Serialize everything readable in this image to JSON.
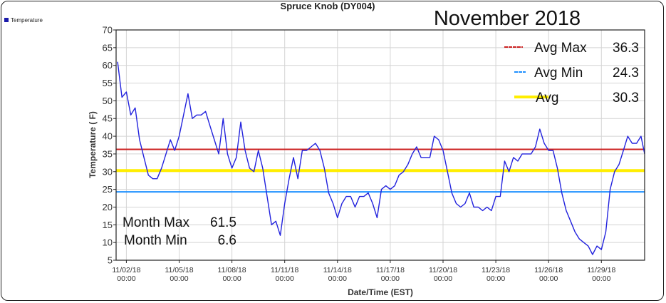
{
  "chart_data": {
    "type": "line",
    "title": "Spruce Knob (DY004)",
    "subtitle": "November 2018",
    "xlabel": "Date/Time (EST)",
    "ylabel": "Temperature ( F)",
    "ylim": [
      5,
      70
    ],
    "yticks": [
      5,
      10,
      15,
      20,
      25,
      30,
      35,
      40,
      45,
      50,
      55,
      60,
      65,
      70
    ],
    "xlim": [
      "11/01/18 10:00",
      "12/01/18 11:00"
    ],
    "xticks": [
      {
        "date": "11/02/18",
        "time": "00:00"
      },
      {
        "date": "11/05/18",
        "time": "00:00"
      },
      {
        "date": "11/08/18",
        "time": "00:00"
      },
      {
        "date": "11/11/18",
        "time": "00:00"
      },
      {
        "date": "11/14/18",
        "time": "00:00"
      },
      {
        "date": "11/17/18",
        "time": "00:00"
      },
      {
        "date": "11/20/18",
        "time": "00:00"
      },
      {
        "date": "11/23/18",
        "time": "00:00"
      },
      {
        "date": "11/26/18",
        "time": "00:00"
      },
      {
        "date": "11/29/18",
        "time": "00:00"
      }
    ],
    "grid": true,
    "legend": {
      "position": "top-left",
      "entries": [
        "Temperature"
      ]
    },
    "series": [
      {
        "name": "Temperature",
        "color": "#2222dd",
        "start": "11/01/18 12:00",
        "step_hours": 6,
        "values": [
          61,
          51,
          52.5,
          46,
          48,
          39,
          34,
          29,
          28,
          28,
          31,
          35,
          39,
          36,
          40,
          46,
          52,
          45,
          46,
          46,
          47,
          43,
          39,
          35,
          45,
          35,
          31,
          34,
          44,
          36,
          31,
          30,
          36,
          31,
          23,
          15,
          16,
          12,
          21,
          28,
          34,
          28,
          36,
          36,
          37,
          38,
          36,
          31,
          24,
          21,
          17,
          21,
          23,
          23,
          20,
          23,
          23,
          24,
          21,
          17,
          25,
          26,
          25,
          26,
          29,
          30,
          32,
          35,
          37,
          34,
          34,
          34,
          40,
          39,
          36,
          30,
          24,
          21,
          20,
          21,
          24,
          20,
          20,
          19,
          20,
          19,
          23,
          23,
          33,
          30,
          34,
          33,
          35,
          35,
          35,
          37,
          42,
          38,
          36,
          36,
          31,
          24,
          19,
          16,
          13,
          11,
          10,
          9,
          6.6,
          9,
          8,
          13,
          25,
          30,
          32,
          36,
          40,
          38,
          38,
          40,
          35
        ]
      }
    ],
    "reference_lines": [
      {
        "label": "Avg Max",
        "value": 36.3,
        "color": "#cc2222"
      },
      {
        "label": "Avg Min",
        "value": 24.3,
        "color": "#1e90ff"
      },
      {
        "label": "Avg",
        "value": 30.3,
        "color": "#ffee00"
      }
    ],
    "annotations": {
      "month_max_label": "Month Max",
      "month_max": "61.5",
      "month_min_label": "Month Min",
      "month_min": "6.6"
    }
  }
}
